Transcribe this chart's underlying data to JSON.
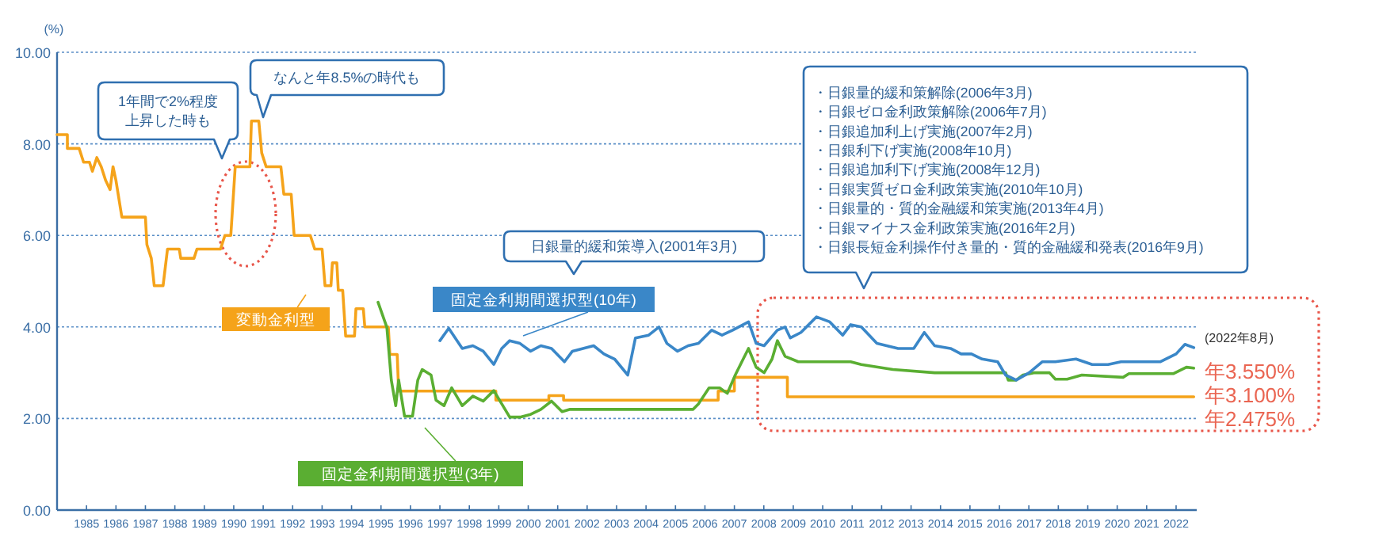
{
  "chart_data": {
    "type": "line",
    "ylabel": "(%)",
    "xlim": [
      1984,
      2022.7
    ],
    "xticks": [
      1985,
      1986,
      1987,
      1988,
      1989,
      1990,
      1991,
      1992,
      1993,
      1994,
      1995,
      1996,
      1997,
      1998,
      1999,
      2000,
      2001,
      2002,
      2003,
      2004,
      2005,
      2006,
      2007,
      2008,
      2009,
      2010,
      2011,
      2012,
      2013,
      2014,
      2015,
      2016,
      2017,
      2018,
      2019,
      2020,
      2021,
      2022
    ],
    "ylim": [
      0,
      10
    ],
    "yticks": [
      {
        "value": 0,
        "label": "0.00"
      },
      {
        "value": 2,
        "label": "2.00"
      },
      {
        "value": 4,
        "label": "4.00"
      },
      {
        "value": 6,
        "label": "6.00"
      },
      {
        "value": 8,
        "label": "8.00"
      },
      {
        "value": 10,
        "label": "10.00"
      }
    ],
    "grid": "y",
    "series": [
      {
        "name": "変動金利型",
        "color": "#f5a31a",
        "x": [
          1984.0,
          1984.35,
          1984.35,
          1984.75,
          1984.9,
          1985.1,
          1985.2,
          1985.35,
          1985.5,
          1985.65,
          1985.8,
          1985.9,
          1986.0,
          1986.2,
          1987.0,
          1987.05,
          1987.2,
          1987.3,
          1987.6,
          1987.75,
          1988.15,
          1988.2,
          1988.65,
          1988.75,
          1989.55,
          1989.7,
          1989.9,
          1989.95,
          1990.05,
          1990.55,
          1990.6,
          1990.85,
          1990.95,
          1991.1,
          1991.6,
          1991.7,
          1991.95,
          1992.05,
          1992.6,
          1992.75,
          1993.0,
          1993.1,
          1993.3,
          1993.35,
          1993.5,
          1993.55,
          1993.7,
          1993.8,
          1994.1,
          1994.15,
          1994.4,
          1994.45,
          1995.25,
          1995.3,
          1995.55,
          1995.6,
          1998.9,
          1998.9,
          2000.7,
          2000.7,
          2001.2,
          2001.2,
          2006.45,
          2006.45,
          2007.0,
          2007.0,
          2008.8,
          2008.8,
          2022.6
        ],
        "values": [
          8.2,
          8.2,
          7.9,
          7.9,
          7.6,
          7.6,
          7.4,
          7.7,
          7.5,
          7.2,
          7.0,
          7.5,
          7.2,
          6.4,
          6.4,
          5.8,
          5.5,
          4.9,
          4.9,
          5.7,
          5.7,
          5.5,
          5.5,
          5.7,
          5.7,
          6.0,
          6.0,
          6.5,
          7.5,
          7.5,
          8.5,
          8.5,
          7.8,
          7.5,
          7.5,
          6.9,
          6.9,
          6.0,
          6.0,
          5.7,
          5.7,
          4.9,
          4.9,
          5.4,
          5.4,
          4.8,
          4.8,
          3.8,
          3.8,
          4.4,
          4.4,
          4.0,
          4.0,
          3.4,
          3.4,
          2.6,
          2.6,
          2.4,
          2.4,
          2.5,
          2.5,
          2.4,
          2.4,
          2.6,
          2.6,
          2.9,
          2.9,
          2.475,
          2.475
        ]
      },
      {
        "name": "固定金利期間選択型(10年)",
        "color": "#3a87c8",
        "x": [
          1997.0,
          1997.3,
          1997.76,
          1998.12,
          1998.47,
          1998.83,
          1999.1,
          1999.37,
          1999.72,
          2000.08,
          2000.43,
          2000.79,
          2001.23,
          2001.5,
          2001.86,
          2002.22,
          2002.57,
          2002.93,
          2003.38,
          2003.64,
          2004.09,
          2004.44,
          2004.71,
          2005.07,
          2005.43,
          2005.78,
          2006.23,
          2006.58,
          2006.94,
          2007.48,
          2007.74,
          2008.01,
          2008.46,
          2008.72,
          2008.9,
          2009.26,
          2009.79,
          2010.24,
          2010.68,
          2010.95,
          2011.31,
          2011.84,
          2012.56,
          2013.09,
          2013.45,
          2013.8,
          2014.34,
          2014.7,
          2015.05,
          2015.41,
          2015.94,
          2016.21,
          2016.57,
          2017.01,
          2017.46,
          2017.9,
          2018.6,
          2019.15,
          2019.69,
          2020.13,
          2020.58,
          2021.11,
          2021.47,
          2022.0,
          2022.3,
          2022.6
        ],
        "values": [
          3.7,
          3.97,
          3.53,
          3.59,
          3.47,
          3.18,
          3.53,
          3.7,
          3.64,
          3.47,
          3.59,
          3.53,
          3.24,
          3.47,
          3.53,
          3.59,
          3.41,
          3.3,
          2.95,
          3.76,
          3.82,
          4.0,
          3.64,
          3.47,
          3.59,
          3.64,
          3.93,
          3.82,
          3.93,
          4.11,
          3.64,
          3.59,
          3.93,
          4.0,
          3.76,
          3.88,
          4.22,
          4.11,
          3.82,
          4.05,
          4.0,
          3.64,
          3.53,
          3.53,
          3.88,
          3.59,
          3.53,
          3.41,
          3.41,
          3.3,
          3.24,
          2.95,
          2.84,
          3.0,
          3.24,
          3.24,
          3.3,
          3.18,
          3.18,
          3.24,
          3.24,
          3.24,
          3.24,
          3.41,
          3.62,
          3.55
        ]
      },
      {
        "name": "固定金利期間選択型(3年)",
        "color": "#5aae32",
        "x": [
          1994.9,
          1995.2,
          1995.35,
          1995.5,
          1995.6,
          1995.8,
          1996.07,
          1996.25,
          1996.4,
          1996.7,
          1996.87,
          1997.14,
          1997.4,
          1997.76,
          1998.12,
          1998.47,
          1998.83,
          1999.1,
          1999.37,
          1999.72,
          2000.08,
          2000.43,
          2000.79,
          2001.15,
          2001.42,
          2005.6,
          2005.78,
          2006.14,
          2006.5,
          2006.76,
          2007.03,
          2007.3,
          2007.48,
          2007.74,
          2008.01,
          2008.28,
          2008.46,
          2008.72,
          2009.17,
          2009.88,
          2010.95,
          2011.31,
          2012.38,
          2013.8,
          2016.21,
          2016.3,
          2016.57,
          2016.8,
          2017.2,
          2017.7,
          2017.9,
          2018.3,
          2018.8,
          2020.2,
          2020.4,
          2021.9,
          2022.35,
          2022.6
        ],
        "values": [
          4.54,
          3.99,
          2.84,
          2.28,
          2.84,
          2.05,
          2.05,
          2.84,
          3.07,
          2.95,
          2.4,
          2.28,
          2.67,
          2.28,
          2.49,
          2.38,
          2.61,
          2.32,
          2.03,
          2.03,
          2.09,
          2.2,
          2.38,
          2.15,
          2.2,
          2.2,
          2.32,
          2.67,
          2.67,
          2.55,
          2.95,
          3.3,
          3.53,
          3.12,
          3.0,
          3.3,
          3.7,
          3.36,
          3.24,
          3.24,
          3.24,
          3.18,
          3.07,
          3.0,
          3.0,
          2.84,
          2.84,
          2.95,
          3.0,
          3.0,
          2.86,
          2.86,
          2.95,
          2.9,
          2.98,
          2.98,
          3.12,
          3.1
        ]
      }
    ],
    "legend": "left",
    "annotations": [
      "1年間で2%程度上昇した時も",
      "なんと年8.5%の時代も",
      "日銀量的緩和策導入(2001年3月)",
      "・日銀量的緩和策解除(2006年3月)\n・日銀ゼロ金利政策解除(2006年7月)\n・日銀追加利上げ実施(2007年2月)\n・日銀利下げ実施(2008年10月)\n・日銀追加利下げ実施(2008年12月)\n・日銀実質ゼロ金利政策実施(2010年10月)\n・日銀量的・質的金融緩和策実施(2013年4月)\n・日銀マイナス金利政策実施(2016年2月)\n・日銀長短金利操作付き量的・質的金融緩和発表(2016年9月)",
      "(2022年8月)",
      "年3.550%",
      "年3.100%",
      "年2.475%"
    ]
  }
}
